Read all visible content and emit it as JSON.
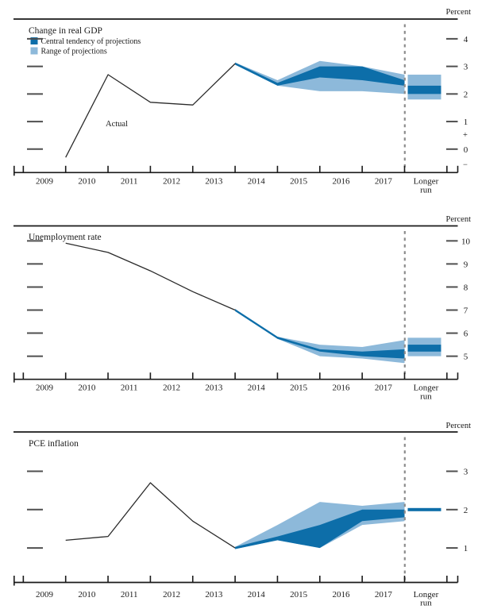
{
  "colors": {
    "central_tendency": "#0d6ea9",
    "range": "#8db9da",
    "actual_line": "#2b2b2b",
    "axis": "#1a1a1a",
    "value_tick": "#4f4f4f",
    "dashed_line": "#8c8c8c",
    "text": "#1a1a1a"
  },
  "x_axis": {
    "years": [
      "2009",
      "2010",
      "2011",
      "2012",
      "2013",
      "2014",
      "2015",
      "2016",
      "2017"
    ],
    "longer_run_label_line1": "Longer",
    "longer_run_label_line2": "run"
  },
  "chart_data": [
    {
      "type": "area",
      "title": "Change in real GDP",
      "unit_label": "Percent",
      "legend": [
        {
          "label": "Central tendency of projections",
          "swatch": "central_tendency"
        },
        {
          "label": "Range of projections",
          "swatch": "range"
        }
      ],
      "actual_label": "Actual",
      "actual": {
        "years": [
          2009,
          2010,
          2011,
          2012,
          2013
        ],
        "values": [
          -0.3,
          2.7,
          1.7,
          1.6,
          3.1
        ]
      },
      "projections": {
        "years": [
          2014,
          2015,
          2016,
          2017
        ],
        "central_tendency": [
          [
            2.3,
            2.4
          ],
          [
            2.6,
            3.0
          ],
          [
            2.5,
            3.0
          ],
          [
            2.3,
            2.5
          ]
        ],
        "range": [
          [
            2.3,
            2.5
          ],
          [
            2.1,
            3.2
          ],
          [
            2.1,
            3.0
          ],
          [
            2.0,
            2.7
          ]
        ]
      },
      "longer_run": {
        "central_tendency": [
          2.0,
          2.3
        ],
        "range": [
          1.8,
          2.7
        ]
      },
      "yticks": [
        4,
        3,
        2,
        1,
        0
      ],
      "sign_labels": [
        "+",
        "−"
      ]
    },
    {
      "type": "area",
      "title": "Unemployment rate",
      "unit_label": "Percent",
      "legend": [],
      "actual_label": "",
      "actual": {
        "years": [
          2009,
          2010,
          2011,
          2012,
          2013
        ],
        "values": [
          9.9,
          9.5,
          8.7,
          7.8,
          7.0
        ]
      },
      "projections": {
        "years": [
          2014,
          2015,
          2016,
          2017
        ],
        "central_tendency": [
          [
            5.8,
            5.8
          ],
          [
            5.2,
            5.3
          ],
          [
            5.0,
            5.2
          ],
          [
            4.9,
            5.3
          ]
        ],
        "range": [
          [
            5.8,
            5.8
          ],
          [
            5.0,
            5.5
          ],
          [
            4.9,
            5.4
          ],
          [
            4.7,
            5.7
          ]
        ]
      },
      "longer_run": {
        "central_tendency": [
          5.2,
          5.5
        ],
        "range": [
          5.0,
          5.8
        ]
      },
      "yticks": [
        10,
        9,
        8,
        7,
        6,
        5
      ],
      "sign_labels": []
    },
    {
      "type": "area",
      "title": "PCE inflation",
      "unit_label": "Percent",
      "legend": [],
      "actual_label": "",
      "actual": {
        "years": [
          2009,
          2010,
          2011,
          2012,
          2013
        ],
        "values": [
          1.2,
          1.3,
          2.7,
          1.7,
          1.0
        ]
      },
      "projections": {
        "years": [
          2014,
          2015,
          2016,
          2017
        ],
        "central_tendency": [
          [
            1.2,
            1.3
          ],
          [
            1.0,
            1.6
          ],
          [
            1.7,
            2.0
          ],
          [
            1.8,
            2.0
          ]
        ],
        "range": [
          [
            1.2,
            1.6
          ],
          [
            1.0,
            2.2
          ],
          [
            1.6,
            2.1
          ],
          [
            1.7,
            2.2
          ]
        ]
      },
      "longer_run": {
        "central_tendency": [
          2.0,
          2.0
        ],
        "range": [
          2.0,
          2.0
        ]
      },
      "yticks": [
        3,
        2,
        1
      ],
      "sign_labels": []
    }
  ]
}
